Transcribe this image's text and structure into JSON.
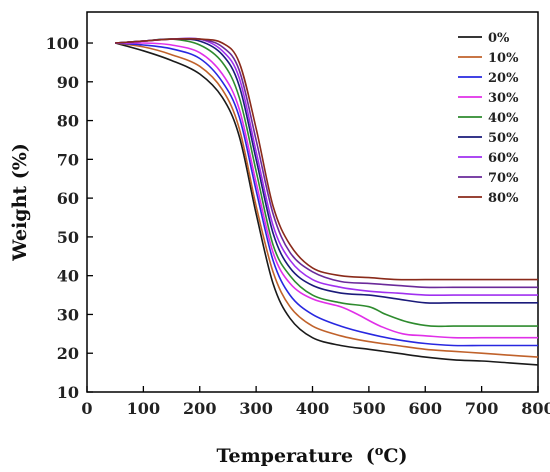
{
  "chart_data": {
    "type": "line",
    "title": "",
    "xlabel": "Temperature",
    "xlabel_unit_prefix": "(",
    "xlabel_unit_sup": "o",
    "xlabel_unit_suffix": "C)",
    "ylabel": "Weight (%)",
    "xlim": [
      0,
      800
    ],
    "ylim": [
      10,
      108
    ],
    "xticks": [
      0,
      100,
      200,
      300,
      400,
      500,
      600,
      700,
      800
    ],
    "yticks": [
      10,
      20,
      30,
      40,
      50,
      60,
      70,
      80,
      90,
      100
    ],
    "grid": false,
    "legend_position": "top-right",
    "series": [
      {
        "name": "0%",
        "color": "#1a1a1a",
        "points": [
          [
            50,
            100
          ],
          [
            100,
            98
          ],
          [
            150,
            95.5
          ],
          [
            200,
            92
          ],
          [
            240,
            86
          ],
          [
            270,
            76
          ],
          [
            300,
            56
          ],
          [
            330,
            38
          ],
          [
            360,
            29
          ],
          [
            400,
            24
          ],
          [
            450,
            22
          ],
          [
            500,
            21
          ],
          [
            550,
            20
          ],
          [
            600,
            19
          ],
          [
            650,
            18.3
          ],
          [
            700,
            18
          ],
          [
            750,
            17.5
          ],
          [
            800,
            17
          ]
        ]
      },
      {
        "name": "10%",
        "color": "#c0622b",
        "points": [
          [
            50,
            100
          ],
          [
            100,
            99
          ],
          [
            150,
            97
          ],
          [
            200,
            94
          ],
          [
            240,
            88
          ],
          [
            270,
            78
          ],
          [
            300,
            58
          ],
          [
            330,
            41
          ],
          [
            360,
            32
          ],
          [
            400,
            27
          ],
          [
            450,
            24.5
          ],
          [
            500,
            23
          ],
          [
            550,
            22
          ],
          [
            600,
            21
          ],
          [
            650,
            20.5
          ],
          [
            700,
            20
          ],
          [
            750,
            19.5
          ],
          [
            800,
            19
          ]
        ]
      },
      {
        "name": "20%",
        "color": "#2828e0",
        "points": [
          [
            50,
            100
          ],
          [
            100,
            99.5
          ],
          [
            150,
            98.5
          ],
          [
            200,
            96
          ],
          [
            240,
            90
          ],
          [
            270,
            81
          ],
          [
            300,
            62
          ],
          [
            330,
            44
          ],
          [
            360,
            35
          ],
          [
            400,
            30
          ],
          [
            450,
            27
          ],
          [
            500,
            25
          ],
          [
            550,
            23.5
          ],
          [
            600,
            22.5
          ],
          [
            650,
            22
          ],
          [
            700,
            22
          ],
          [
            750,
            22
          ],
          [
            800,
            22
          ]
        ]
      },
      {
        "name": "30%",
        "color": "#e030e8",
        "points": [
          [
            50,
            100
          ],
          [
            100,
            100
          ],
          [
            150,
            99.5
          ],
          [
            200,
            97.5
          ],
          [
            240,
            92
          ],
          [
            270,
            83
          ],
          [
            300,
            64
          ],
          [
            330,
            46
          ],
          [
            360,
            38
          ],
          [
            400,
            34
          ],
          [
            450,
            32
          ],
          [
            480,
            30
          ],
          [
            520,
            27
          ],
          [
            560,
            25
          ],
          [
            600,
            24.5
          ],
          [
            650,
            24
          ],
          [
            700,
            24
          ],
          [
            750,
            24
          ],
          [
            800,
            24
          ]
        ]
      },
      {
        "name": "40%",
        "color": "#2e8b2e",
        "points": [
          [
            50,
            100
          ],
          [
            100,
            100.5
          ],
          [
            150,
            101
          ],
          [
            200,
            99.5
          ],
          [
            240,
            95
          ],
          [
            270,
            86
          ],
          [
            300,
            67
          ],
          [
            330,
            48
          ],
          [
            360,
            40
          ],
          [
            400,
            35
          ],
          [
            450,
            33
          ],
          [
            500,
            32
          ],
          [
            530,
            30
          ],
          [
            570,
            28
          ],
          [
            610,
            27
          ],
          [
            650,
            27
          ],
          [
            700,
            27
          ],
          [
            750,
            27
          ],
          [
            800,
            27
          ]
        ]
      },
      {
        "name": "50%",
        "color": "#1a1a7a",
        "points": [
          [
            50,
            100
          ],
          [
            100,
            100.5
          ],
          [
            150,
            101
          ],
          [
            200,
            100.5
          ],
          [
            240,
            97
          ],
          [
            270,
            89
          ],
          [
            300,
            70
          ],
          [
            330,
            51
          ],
          [
            360,
            42
          ],
          [
            400,
            37.5
          ],
          [
            450,
            35.5
          ],
          [
            500,
            35
          ],
          [
            550,
            34
          ],
          [
            600,
            33
          ],
          [
            650,
            33
          ],
          [
            700,
            33
          ],
          [
            750,
            33
          ],
          [
            800,
            33
          ]
        ]
      },
      {
        "name": "60%",
        "color": "#a030f0",
        "points": [
          [
            50,
            100
          ],
          [
            100,
            100.5
          ],
          [
            150,
            101
          ],
          [
            200,
            101
          ],
          [
            240,
            98
          ],
          [
            270,
            91
          ],
          [
            300,
            72
          ],
          [
            330,
            53
          ],
          [
            360,
            44
          ],
          [
            400,
            39
          ],
          [
            450,
            37
          ],
          [
            500,
            36
          ],
          [
            550,
            35.5
          ],
          [
            600,
            35
          ],
          [
            650,
            35
          ],
          [
            700,
            35
          ],
          [
            750,
            35
          ],
          [
            800,
            35
          ]
        ]
      },
      {
        "name": "70%",
        "color": "#6a2a9a",
        "points": [
          [
            50,
            100
          ],
          [
            100,
            100.5
          ],
          [
            150,
            101
          ],
          [
            200,
            101
          ],
          [
            240,
            99
          ],
          [
            270,
            93
          ],
          [
            300,
            75
          ],
          [
            330,
            56
          ],
          [
            360,
            46
          ],
          [
            400,
            41
          ],
          [
            450,
            38.5
          ],
          [
            500,
            38
          ],
          [
            550,
            37.5
          ],
          [
            600,
            37
          ],
          [
            650,
            37
          ],
          [
            700,
            37
          ],
          [
            750,
            37
          ],
          [
            800,
            37
          ]
        ]
      },
      {
        "name": "80%",
        "color": "#8a2a1a",
        "points": [
          [
            50,
            100
          ],
          [
            100,
            100.5
          ],
          [
            150,
            101
          ],
          [
            200,
            101
          ],
          [
            240,
            100
          ],
          [
            270,
            95
          ],
          [
            300,
            78
          ],
          [
            330,
            58
          ],
          [
            360,
            48
          ],
          [
            400,
            42
          ],
          [
            450,
            40
          ],
          [
            500,
            39.5
          ],
          [
            550,
            39
          ],
          [
            600,
            39
          ],
          [
            650,
            39
          ],
          [
            700,
            39
          ],
          [
            750,
            39
          ],
          [
            800,
            39
          ]
        ]
      }
    ]
  }
}
